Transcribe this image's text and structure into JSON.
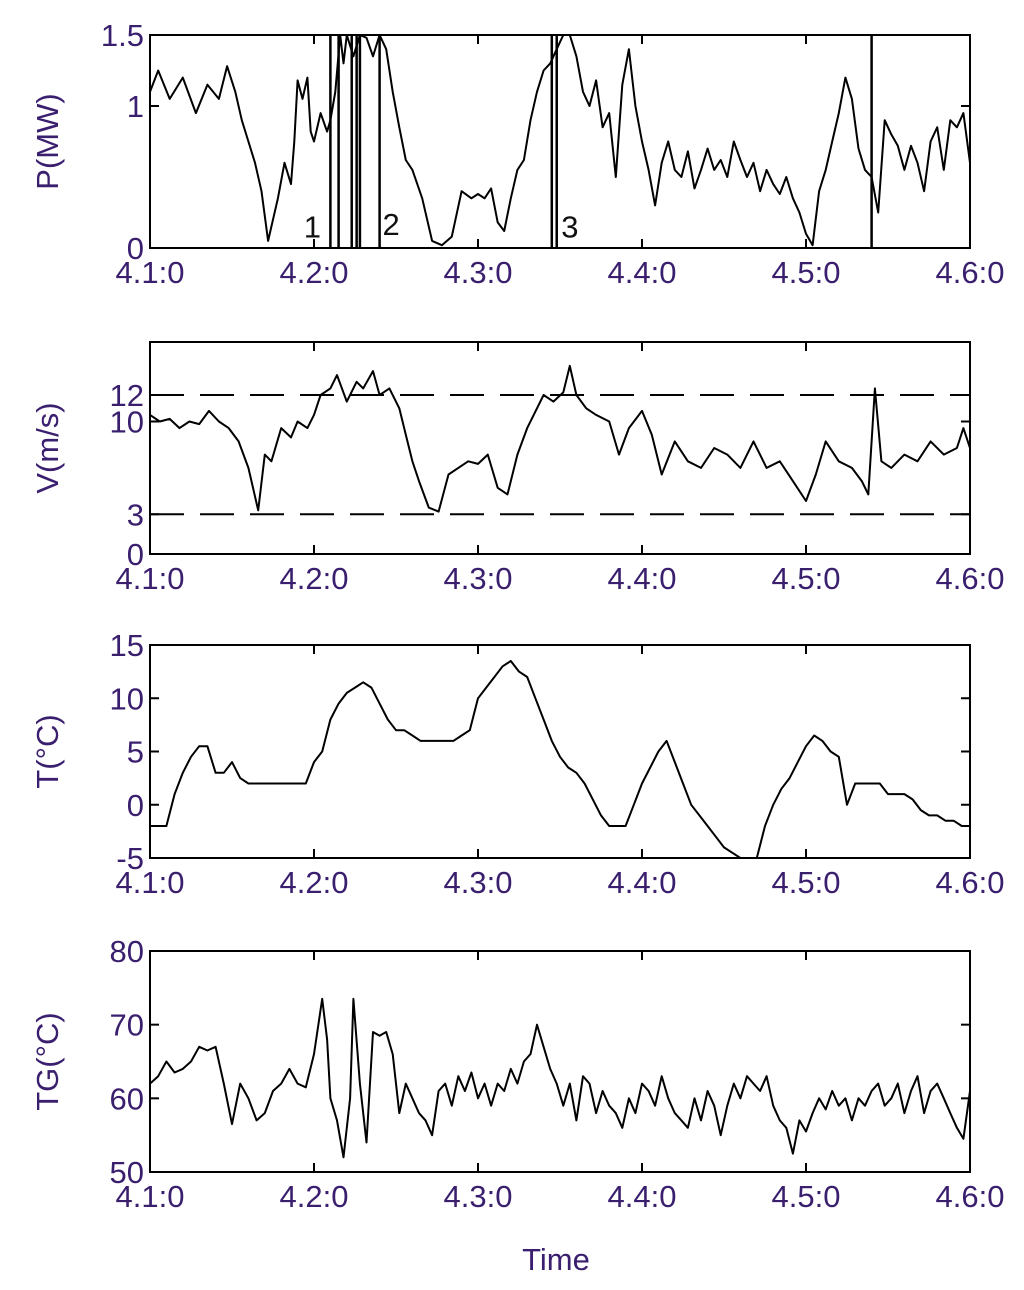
{
  "chart_data": [
    {
      "type": "line",
      "ylabel": "P(MW)",
      "xlabel": "",
      "x_ticks": [
        "4.1:0",
        "4.2:0",
        "4.3:0",
        "4.4:0",
        "4.5:0",
        "4.6:0"
      ],
      "xlim": [
        0,
        5
      ],
      "ylim": [
        0,
        1.5
      ],
      "y_ticks": [
        0,
        1,
        1.5
      ],
      "y_tick_labels": [
        "0",
        "1",
        "1.5"
      ],
      "series": [
        {
          "x": [
            0.0,
            0.05,
            0.12,
            0.2,
            0.28,
            0.35,
            0.42,
            0.47,
            0.52,
            0.56,
            0.6,
            0.64,
            0.68,
            0.72,
            0.78,
            0.82,
            0.86,
            0.88,
            0.9,
            0.93,
            0.96,
            0.98,
            1.0,
            1.04,
            1.08,
            1.1,
            1.13,
            1.16,
            1.18,
            1.2,
            1.24,
            1.28,
            1.32,
            1.36,
            1.4,
            1.44,
            1.48,
            1.52,
            1.56,
            1.6,
            1.66,
            1.72,
            1.78,
            1.84,
            1.9,
            1.96,
            2.0,
            2.04,
            2.08,
            2.12,
            2.16,
            2.2,
            2.24,
            2.28,
            2.32,
            2.36,
            2.4,
            2.44,
            2.48,
            2.52,
            2.56,
            2.6,
            2.64,
            2.68,
            2.72,
            2.76,
            2.8,
            2.84,
            2.88,
            2.92,
            2.96,
            3.0,
            3.04,
            3.08,
            3.12,
            3.16,
            3.2,
            3.24,
            3.28,
            3.32,
            3.36,
            3.4,
            3.44,
            3.48,
            3.52,
            3.56,
            3.6,
            3.64,
            3.68,
            3.72,
            3.76,
            3.8,
            3.84,
            3.88,
            3.92,
            3.96,
            4.0,
            4.04,
            4.08,
            4.12,
            4.16,
            4.2,
            4.24,
            4.28,
            4.32,
            4.36,
            4.4,
            4.44,
            4.48,
            4.52,
            4.56,
            4.6,
            4.64,
            4.68,
            4.72,
            4.76,
            4.8,
            4.84,
            4.88,
            4.92,
            4.96,
            5.0
          ],
          "values": [
            1.1,
            1.25,
            1.05,
            1.2,
            0.95,
            1.15,
            1.05,
            1.28,
            1.1,
            0.9,
            0.75,
            0.6,
            0.4,
            0.05,
            0.35,
            0.6,
            0.45,
            0.75,
            1.18,
            1.05,
            1.2,
            0.82,
            0.75,
            0.95,
            0.82,
            0.9,
            1.1,
            1.5,
            1.3,
            1.5,
            1.35,
            1.5,
            1.48,
            1.35,
            1.5,
            1.4,
            1.1,
            0.85,
            0.62,
            0.55,
            0.35,
            0.05,
            0.02,
            0.08,
            0.4,
            0.35,
            0.38,
            0.35,
            0.42,
            0.18,
            0.12,
            0.35,
            0.55,
            0.62,
            0.9,
            1.1,
            1.25,
            1.3,
            1.4,
            1.5,
            1.5,
            1.35,
            1.1,
            1.0,
            1.18,
            0.85,
            0.95,
            0.5,
            1.15,
            1.4,
            1.0,
            0.75,
            0.55,
            0.3,
            0.6,
            0.75,
            0.55,
            0.5,
            0.68,
            0.42,
            0.55,
            0.7,
            0.55,
            0.62,
            0.5,
            0.75,
            0.62,
            0.5,
            0.6,
            0.4,
            0.55,
            0.45,
            0.38,
            0.5,
            0.35,
            0.25,
            0.1,
            0.02,
            0.4,
            0.55,
            0.75,
            0.95,
            1.2,
            1.05,
            0.7,
            0.55,
            0.5,
            0.25,
            0.9,
            0.8,
            0.72,
            0.55,
            0.72,
            0.6,
            0.4,
            0.75,
            0.85,
            0.55,
            0.9,
            0.85,
            0.95,
            0.6
          ]
        }
      ],
      "spikes": [
        1.1,
        1.15,
        1.23,
        1.26,
        1.28,
        1.4,
        2.45,
        2.48,
        4.4
      ],
      "annotations": [
        {
          "text": "1",
          "x": 0.99,
          "y": 0.15
        },
        {
          "text": "2",
          "x": 1.47,
          "y": 0.17
        },
        {
          "text": "3",
          "x": 2.56,
          "y": 0.15
        }
      ]
    },
    {
      "type": "line",
      "ylabel": "V(m/s)",
      "xlabel": "",
      "x_ticks": [
        "4.1:0",
        "4.2:0",
        "4.3:0",
        "4.4:0",
        "4.5:0",
        "4.6:0"
      ],
      "xlim": [
        0,
        5
      ],
      "ylim": [
        0,
        16
      ],
      "y_ticks": [
        0,
        3,
        10,
        12
      ],
      "y_tick_labels": [
        "0",
        "3",
        "10",
        "12"
      ],
      "reference_lines": [
        12,
        3
      ],
      "series": [
        {
          "x": [
            0.0,
            0.06,
            0.12,
            0.18,
            0.24,
            0.3,
            0.36,
            0.42,
            0.48,
            0.54,
            0.6,
            0.66,
            0.7,
            0.74,
            0.8,
            0.86,
            0.9,
            0.96,
            1.0,
            1.04,
            1.1,
            1.14,
            1.2,
            1.26,
            1.3,
            1.36,
            1.4,
            1.46,
            1.52,
            1.56,
            1.6,
            1.64,
            1.7,
            1.76,
            1.82,
            1.88,
            1.94,
            2.0,
            2.06,
            2.12,
            2.18,
            2.24,
            2.3,
            2.36,
            2.4,
            2.46,
            2.52,
            2.56,
            2.6,
            2.66,
            2.72,
            2.8,
            2.86,
            2.92,
            3.0,
            3.06,
            3.12,
            3.2,
            3.28,
            3.36,
            3.44,
            3.52,
            3.6,
            3.68,
            3.76,
            3.84,
            3.92,
            4.0,
            4.06,
            4.12,
            4.2,
            4.28,
            4.34,
            4.38,
            4.42,
            4.46,
            4.52,
            4.6,
            4.68,
            4.76,
            4.84,
            4.92,
            4.96,
            5.0
          ],
          "values": [
            10.5,
            10.0,
            10.2,
            9.5,
            10.0,
            9.8,
            10.8,
            10.0,
            9.5,
            8.5,
            6.5,
            3.3,
            7.5,
            7.0,
            9.5,
            8.8,
            10.0,
            9.5,
            10.5,
            12.0,
            12.5,
            13.5,
            11.5,
            13.0,
            12.5,
            13.8,
            12.0,
            12.5,
            11.0,
            9.0,
            7.0,
            5.5,
            3.5,
            3.2,
            6.0,
            6.5,
            7.0,
            6.8,
            7.5,
            5.0,
            4.5,
            7.5,
            9.5,
            11.0,
            12.0,
            11.5,
            12.2,
            14.2,
            12.0,
            11.0,
            10.5,
            10.0,
            7.5,
            9.5,
            10.8,
            9.0,
            6.0,
            8.5,
            7.0,
            6.5,
            8.0,
            7.5,
            6.5,
            8.5,
            6.5,
            7.0,
            5.5,
            4.0,
            6.0,
            8.5,
            7.0,
            6.5,
            5.5,
            4.5,
            12.5,
            7.0,
            6.5,
            7.5,
            7.0,
            8.5,
            7.5,
            8.0,
            9.5,
            8.0
          ]
        }
      ]
    },
    {
      "type": "line",
      "ylabel": "T(°C)",
      "xlabel": "",
      "x_ticks": [
        "4.1:0",
        "4.2:0",
        "4.3:0",
        "4.4:0",
        "4.5:0",
        "4.6:0"
      ],
      "xlim": [
        0,
        5
      ],
      "ylim": [
        -5,
        15
      ],
      "y_ticks": [
        -5,
        0,
        5,
        10,
        15
      ],
      "y_tick_labels": [
        "-5",
        "0",
        "5",
        "10",
        "15"
      ],
      "series": [
        {
          "x": [
            0.0,
            0.05,
            0.1,
            0.15,
            0.2,
            0.25,
            0.3,
            0.35,
            0.4,
            0.45,
            0.5,
            0.55,
            0.6,
            0.65,
            0.7,
            0.75,
            0.8,
            0.85,
            0.9,
            0.95,
            1.0,
            1.05,
            1.1,
            1.15,
            1.2,
            1.25,
            1.3,
            1.35,
            1.4,
            1.45,
            1.5,
            1.55,
            1.6,
            1.65,
            1.7,
            1.75,
            1.8,
            1.85,
            1.9,
            1.95,
            2.0,
            2.05,
            2.1,
            2.15,
            2.2,
            2.25,
            2.3,
            2.35,
            2.4,
            2.45,
            2.5,
            2.55,
            2.6,
            2.65,
            2.7,
            2.75,
            2.8,
            2.85,
            2.9,
            2.95,
            3.0,
            3.05,
            3.1,
            3.15,
            3.2,
            3.25,
            3.3,
            3.35,
            3.4,
            3.45,
            3.5,
            3.55,
            3.6,
            3.65,
            3.7,
            3.75,
            3.8,
            3.85,
            3.9,
            3.95,
            4.0,
            4.05,
            4.1,
            4.15,
            4.2,
            4.25,
            4.3,
            4.35,
            4.4,
            4.42,
            4.45,
            4.5,
            4.55,
            4.6,
            4.65,
            4.7,
            4.75,
            4.8,
            4.85,
            4.9,
            4.95,
            5.0
          ],
          "values": [
            -2.0,
            -2.0,
            -2.0,
            1.0,
            3.0,
            4.5,
            5.5,
            5.5,
            3.0,
            3.0,
            4.0,
            2.5,
            2.0,
            2.0,
            2.0,
            2.0,
            2.0,
            2.0,
            2.0,
            2.0,
            4.0,
            5.0,
            8.0,
            9.5,
            10.5,
            11.0,
            11.5,
            11.0,
            9.5,
            8.0,
            7.0,
            7.0,
            6.5,
            6.0,
            6.0,
            6.0,
            6.0,
            6.0,
            6.5,
            7.0,
            10.0,
            11.0,
            12.0,
            13.0,
            13.5,
            12.5,
            12.0,
            10.0,
            8.0,
            6.0,
            4.5,
            3.5,
            3.0,
            2.0,
            0.5,
            -1.0,
            -2.0,
            -2.0,
            -2.0,
            0.0,
            2.0,
            3.5,
            5.0,
            6.0,
            4.0,
            2.0,
            0.0,
            -1.0,
            -2.0,
            -3.0,
            -4.0,
            -4.5,
            -5.0,
            -5.0,
            -5.0,
            -2.0,
            0.0,
            1.5,
            2.5,
            4.0,
            5.5,
            6.5,
            6.0,
            5.0,
            4.5,
            0.0,
            2.0,
            2.0,
            2.0,
            2.0,
            2.0,
            1.0,
            1.0,
            1.0,
            0.5,
            -0.5,
            -1.0,
            -1.0,
            -1.5,
            -1.5,
            -2.0,
            -2.0
          ]
        }
      ]
    },
    {
      "type": "line",
      "ylabel": "TG(°C)",
      "xlabel": "Time",
      "x_ticks": [
        "4.1:0",
        "4.2:0",
        "4.3:0",
        "4.4:0",
        "4.5:0",
        "4.6:0"
      ],
      "xlim": [
        0,
        5
      ],
      "ylim": [
        50,
        80
      ],
      "y_ticks": [
        50,
        60,
        70,
        80
      ],
      "y_tick_labels": [
        "50",
        "60",
        "70",
        "80"
      ],
      "series": [
        {
          "x": [
            0.0,
            0.05,
            0.1,
            0.15,
            0.2,
            0.25,
            0.3,
            0.35,
            0.4,
            0.45,
            0.5,
            0.55,
            0.6,
            0.65,
            0.7,
            0.75,
            0.8,
            0.85,
            0.9,
            0.95,
            1.0,
            1.05,
            1.08,
            1.1,
            1.14,
            1.18,
            1.22,
            1.24,
            1.28,
            1.32,
            1.36,
            1.4,
            1.44,
            1.48,
            1.52,
            1.56,
            1.6,
            1.64,
            1.68,
            1.72,
            1.76,
            1.8,
            1.84,
            1.88,
            1.92,
            1.96,
            2.0,
            2.04,
            2.08,
            2.12,
            2.16,
            2.2,
            2.24,
            2.28,
            2.32,
            2.36,
            2.4,
            2.44,
            2.48,
            2.52,
            2.56,
            2.6,
            2.64,
            2.68,
            2.72,
            2.76,
            2.8,
            2.84,
            2.88,
            2.92,
            2.96,
            3.0,
            3.04,
            3.08,
            3.12,
            3.16,
            3.2,
            3.24,
            3.28,
            3.32,
            3.36,
            3.4,
            3.44,
            3.48,
            3.52,
            3.56,
            3.6,
            3.64,
            3.68,
            3.72,
            3.76,
            3.8,
            3.84,
            3.88,
            3.92,
            3.96,
            4.0,
            4.04,
            4.08,
            4.12,
            4.16,
            4.2,
            4.24,
            4.28,
            4.32,
            4.36,
            4.4,
            4.44,
            4.48,
            4.52,
            4.56,
            4.6,
            4.64,
            4.68,
            4.72,
            4.76,
            4.8,
            4.84,
            4.88,
            4.92,
            4.96,
            5.0
          ],
          "values": [
            62.0,
            63.0,
            65.0,
            63.5,
            64.0,
            65.0,
            67.0,
            66.5,
            67.0,
            62.0,
            56.5,
            62.0,
            60.0,
            57.0,
            58.0,
            61.0,
            62.0,
            64.0,
            62.0,
            61.5,
            66.0,
            73.5,
            68.0,
            60.0,
            57.0,
            52.0,
            60.0,
            73.5,
            62.0,
            54.0,
            69.0,
            68.5,
            69.0,
            66.0,
            58.0,
            62.0,
            60.0,
            58.0,
            57.0,
            55.0,
            61.0,
            62.0,
            59.0,
            63.0,
            61.0,
            63.5,
            60.0,
            62.0,
            59.0,
            62.0,
            61.0,
            64.0,
            62.0,
            65.0,
            66.0,
            70.0,
            67.0,
            64.0,
            62.0,
            59.0,
            62.0,
            57.0,
            63.0,
            62.0,
            58.0,
            61.0,
            59.0,
            58.0,
            56.0,
            60.0,
            58.0,
            62.0,
            61.0,
            59.0,
            63.0,
            60.0,
            58.0,
            57.0,
            56.0,
            60.0,
            57.0,
            61.0,
            59.0,
            55.0,
            59.0,
            62.0,
            60.0,
            63.0,
            62.0,
            61.0,
            63.0,
            59.0,
            57.0,
            56.0,
            52.5,
            57.0,
            55.5,
            58.0,
            60.0,
            58.5,
            61.0,
            59.0,
            60.0,
            57.0,
            60.0,
            59.0,
            61.0,
            62.0,
            59.0,
            60.0,
            62.0,
            58.0,
            61.0,
            63.0,
            58.0,
            61.0,
            62.0,
            60.0,
            58.0,
            56.0,
            54.5,
            61.0
          ]
        }
      ]
    }
  ]
}
